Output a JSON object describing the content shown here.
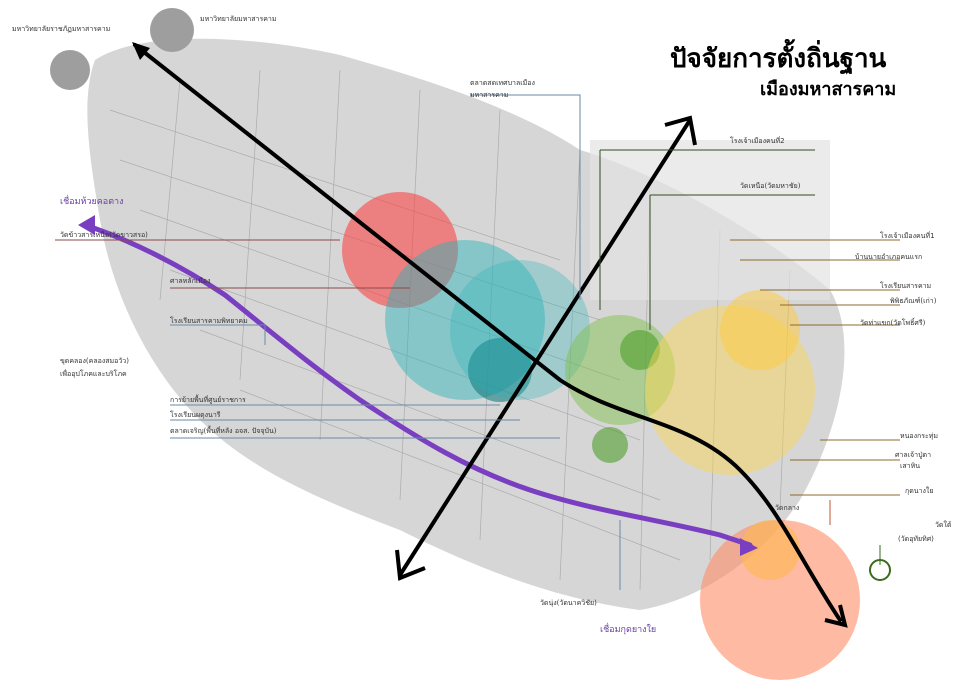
{
  "title": {
    "main": "ปัจจัยการตั้งถิ่นฐาน",
    "sub": "เมืองมหาสารคาม"
  },
  "labels": {
    "univ_rajabhat": "มหาวิทยาลัยราชภัฏมหาสารคาม",
    "univ_msu": "มหาวิทยาลัยมหาสารคาม",
    "market_old": "ตลาดสดเทศบาลเมือง",
    "market_old_2": "มหาสารคาม",
    "link_huai_kho": "เชื่อมห้วยคอตาง",
    "wat_khaosamor": "วัดข้าวสารเหนือ(วัดขาวสรอ)",
    "city_pillar": "ศาลหลักเมือง",
    "school_sarakham_phittayakhom": "โรงเรียนสารคามพิทยาคม",
    "canal_1": "ขุดคลอง(คลองสมอวัว)",
    "canal_2": "เพื่ออุปโภคและบริโภค",
    "govt_center": "การย้ายพื้นที่ศูนย์ราชการ",
    "school_phadungnaree": "โรงเรียนผดุงนารี",
    "market_charoen": "ตลาดเจริญ(พื้นที่หลัง อจส. ปัจจุบัน)",
    "wat_nong": "วัดนุ่ง(วัดนาควิชัย)",
    "link_kut_yang_yai": "เชื่อมกุดยางใย",
    "school_2": "โรงเจ้าเมืองคนที่2",
    "wat_nuea": "วัดเหนือ(วัดมหาชัย)",
    "school_1": "โรงเจ้าเมืองคนที่1",
    "district_chief": "บ้านนายอำเภอคนแรก",
    "school_sarakham": "โรงเรียนสารคาม",
    "museum": "พิพิธภัณฑ์(เก่า)",
    "wat_tha_sok": "วัดท่าแขก(วัดโพธิ์ศรี)",
    "nong_krathum": "หนองกระทุ่ม",
    "shrine": "ศาลเจ้าปู่ตา",
    "shrine_2": "เสาหิน",
    "kut_yang_yai": "กุดนางใย",
    "wat_klang": "วัดกลาง",
    "wat_tai": "วัดใต้",
    "wat_tai_2": "(วัดอุทัยทิศ)"
  },
  "colors": {
    "red_zone": "#ff3b3b",
    "cyan_zone": "#26b3b8",
    "green_zone": "#7cc242",
    "yellow_zone": "#ffd84d",
    "orange_zone": "#ff8c66",
    "purple_route": "#7a3fc1",
    "black_axis": "#000000",
    "gray_area": "#c7c7c7"
  }
}
